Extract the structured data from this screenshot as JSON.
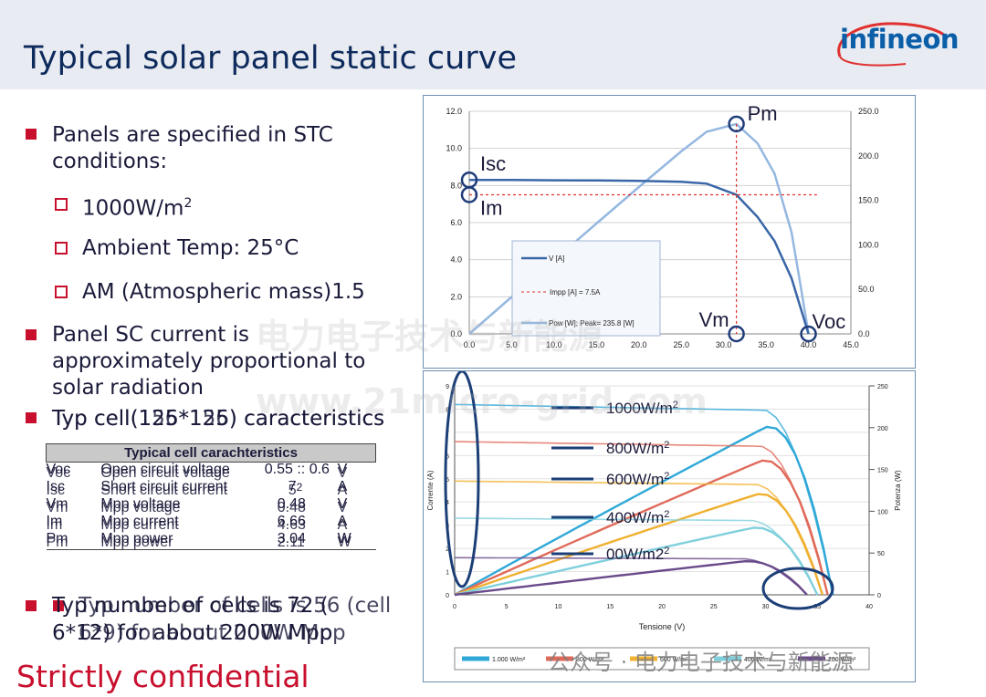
{
  "header": {
    "title": "Typical solar panel static curve",
    "logo": "infineon"
  },
  "bullets": {
    "b1_line1": "Panels are specified in STC",
    "b1_line2": "conditions:",
    "sub1": "1000W/m",
    "sub1_sup": "2",
    "sub2": "Ambient Temp: 25°C",
    "sub3": "AM (Atmospheric mass)1.5",
    "b2_line1": "Panel SC current is",
    "b2_line2": "approximately proportional to",
    "b2_line3": "solar radiation",
    "b3_a": "Typ cell(125*125) caracteristics",
    "b3_b": "Typ cell(156*156) caracteristics",
    "b4_a_line1": "Typ number of cells is 72 (",
    "b4_a_line2": "6*12) for about 200W Mpp",
    "b4_b_line1": "Typ number of cells is 56 (cell",
    "b4_b_line2": "6*9) for about 200W Mpp"
  },
  "table": {
    "title": "Typical cell carachteristics",
    "rows": [
      {
        "sym": "Voc",
        "name": "Open circuit voltage",
        "val_a": "0.55",
        "val_b": "0.6",
        "val_sep": " :: ",
        "unit": "V"
      },
      {
        "sym": "Isc",
        "name": "Short circuit current",
        "val_a": "7",
        "val_b": "5",
        "val_sep": "",
        "unit": "A",
        "extra": "2"
      },
      {
        "sym": "Vm",
        "name": "Mpp voltage",
        "val_a": "0.48",
        "val_b": "0.48",
        "val_sep": "",
        "unit": "V"
      },
      {
        "sym": "Im",
        "name": "Mpp current",
        "val_a": "6.66",
        "val_b": "4.63",
        "val_sep": "",
        "unit": "A"
      },
      {
        "sym": "Pm",
        "name": "Mpp power",
        "val_a": "3.04",
        "val_b": "2.11",
        "val_sep": "",
        "unit": "W"
      }
    ]
  },
  "footer": {
    "confidential": "Strictly confidential"
  },
  "watermarks": {
    "cn": "电力电子技术与新能源",
    "url": "www.21micro-grid.com",
    "wechat": "公众号 · 电力电子技术与新能源"
  },
  "chart_data": [
    {
      "type": "line",
      "title": "",
      "x_ticks": [
        "0.0",
        "5.0",
        "10.0",
        "15.0",
        "20.0",
        "25.0",
        "30.0",
        "35.0",
        "40.0",
        "45.0"
      ],
      "y_left_ticks": [
        "0.0",
        "2.0",
        "4.0",
        "6.0",
        "8.0",
        "10.0",
        "12.0"
      ],
      "y_right_ticks": [
        "0.0",
        "50.0",
        "100.0",
        "150.0",
        "200.0",
        "250.0"
      ],
      "xlim": [
        0,
        45
      ],
      "ylim_left": [
        0,
        12
      ],
      "ylim_right": [
        0,
        250
      ],
      "legend": [
        "V [A]",
        "Impp [A] = 7.5A",
        "Pow [W]; Peak= 235.8 [W]"
      ],
      "annotations": [
        "Pm",
        "Isc",
        "Im",
        "Vm",
        "Voc"
      ],
      "colors": {
        "current": "#3a66a8",
        "power": "#95b8e0",
        "impp": "#e0312f",
        "circle": "#1f3c7a"
      },
      "series": [
        {
          "name": "V [A]",
          "x": [
            0,
            5,
            10,
            15,
            20,
            25,
            28,
            31.5,
            34,
            36,
            38,
            39,
            40
          ],
          "y": [
            8.3,
            8.3,
            8.28,
            8.27,
            8.25,
            8.2,
            8.1,
            7.5,
            6.3,
            5.0,
            3.0,
            1.5,
            0
          ]
        },
        {
          "name": "Pow [W]; Peak= 235.8 [W]",
          "x": [
            0,
            5,
            10,
            15,
            20,
            25,
            28,
            31.5,
            34,
            36,
            38,
            39,
            40
          ],
          "y": [
            0,
            41.5,
            82.8,
            124,
            165,
            205,
            227,
            235.8,
            214,
            180,
            114,
            58,
            0
          ]
        }
      ],
      "markers": {
        "Vm": 31.5,
        "Impp": 7.5,
        "Voc": 40,
        "Isc": 8.3
      }
    },
    {
      "type": "line",
      "title": "",
      "xlabel": "Tensione (V)",
      "ylabel_left": "Corrente (A)",
      "ylabel_right": "Potenza (W)",
      "x_ticks": [
        "0",
        "5",
        "10",
        "15",
        "20",
        "25",
        "30",
        "35",
        "40"
      ],
      "y_left_ticks": [
        "0",
        "1",
        "2",
        "3",
        "4",
        "5",
        "6",
        "7",
        "8",
        "9"
      ],
      "y_right_ticks": [
        "0",
        "50",
        "100",
        "150",
        "200",
        "250"
      ],
      "xlim": [
        0,
        40
      ],
      "ylim_left": [
        0,
        9
      ],
      "ylim_right": [
        0,
        250
      ],
      "labels": [
        "1000W/m2",
        "800W/m2",
        "600W/m2",
        "400W/m2",
        "200W/m2"
      ],
      "legend": [
        "1.000 W/m²",
        "800 W/m²",
        "600 W/m²",
        "400 W/m²",
        "200 W/m²"
      ],
      "series": [
        {
          "name": "1000W/m2",
          "color": "#2fa8d8",
          "isc": 8.2,
          "voc": 36.5,
          "pmax": 200
        },
        {
          "name": "800W/m2",
          "color": "#e06a5a",
          "isc": 6.6,
          "voc": 36.0,
          "pmax": 160
        },
        {
          "name": "600W/m2",
          "color": "#f0b030",
          "isc": 4.9,
          "voc": 35.5,
          "pmax": 120
        },
        {
          "name": "400W/m2",
          "color": "#7fd0dc",
          "isc": 3.3,
          "voc": 35.0,
          "pmax": 80
        },
        {
          "name": "200W/m2",
          "color": "#6a4a8a",
          "isc": 1.6,
          "voc": 34.0,
          "pmax": 40
        }
      ]
    }
  ]
}
